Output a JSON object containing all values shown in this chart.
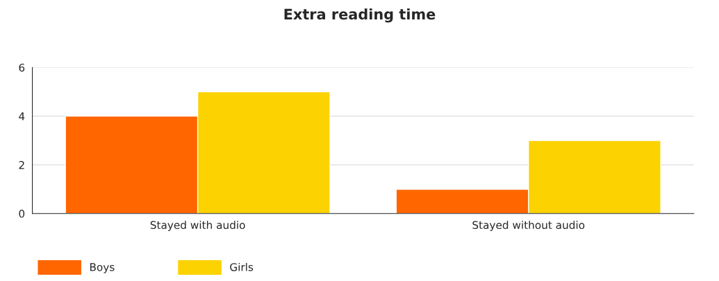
{
  "chart_data": {
    "type": "bar",
    "title": "Extra reading time",
    "categories": [
      "Stayed with audio",
      "Stayed without audio"
    ],
    "series": [
      {
        "name": "Boys",
        "color": "#ff6600",
        "values": [
          4,
          1
        ]
      },
      {
        "name": "Girls",
        "color": "#fcd200",
        "values": [
          5,
          3
        ]
      }
    ],
    "ylim": [
      0,
      6
    ],
    "yticks": [
      0,
      2,
      4,
      6
    ],
    "grid": "y",
    "legend": "bottom left"
  }
}
